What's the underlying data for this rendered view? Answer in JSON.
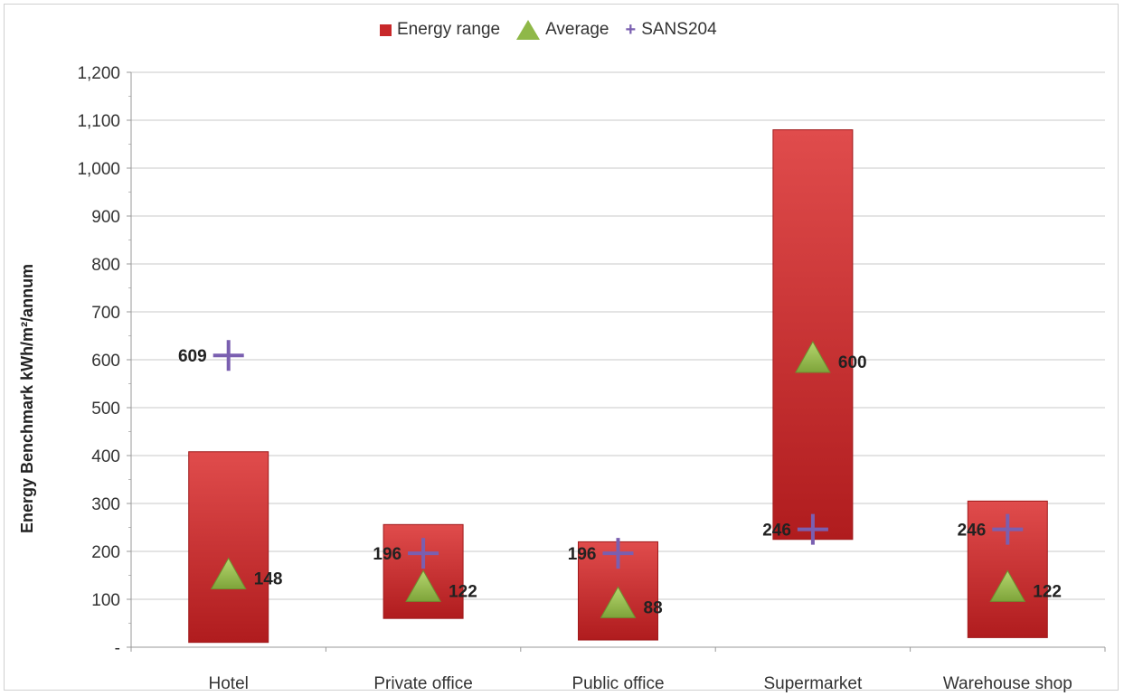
{
  "chart_data": {
    "type": "bar",
    "ylabel": "Energy Benchmark  kWh/m²/annum",
    "ylim": [
      0,
      1200
    ],
    "ytick_step": 100,
    "ytick_labels": [
      "-",
      "100",
      "200",
      "300",
      "400",
      "500",
      "600",
      "700",
      "800",
      "900",
      "1,000",
      "1,100",
      "1,200"
    ],
    "grid": true,
    "legend_position": "top",
    "legend": [
      "Energy range",
      "Average",
      "SANS204"
    ],
    "categories": [
      "Hotel",
      "Private office",
      "Public office",
      "Supermarket",
      "Warehouse shop"
    ],
    "series": [
      {
        "name": "Energy range",
        "kind": "range",
        "color": "#c8282a",
        "low": [
          10,
          60,
          15,
          225,
          20
        ],
        "high": [
          408,
          256,
          220,
          1080,
          305
        ]
      },
      {
        "name": "Average",
        "kind": "marker",
        "marker": "triangle",
        "color": "#8fb848",
        "values": [
          148,
          122,
          88,
          600,
          122
        ],
        "labels": [
          "148",
          "122",
          "88",
          "600",
          "122"
        ]
      },
      {
        "name": "SANS204",
        "kind": "marker",
        "marker": "plus",
        "color": "#7a5fb0",
        "values": [
          609,
          196,
          196,
          246,
          246
        ],
        "labels": [
          "609",
          "196",
          "196",
          "246",
          "246"
        ]
      }
    ]
  }
}
